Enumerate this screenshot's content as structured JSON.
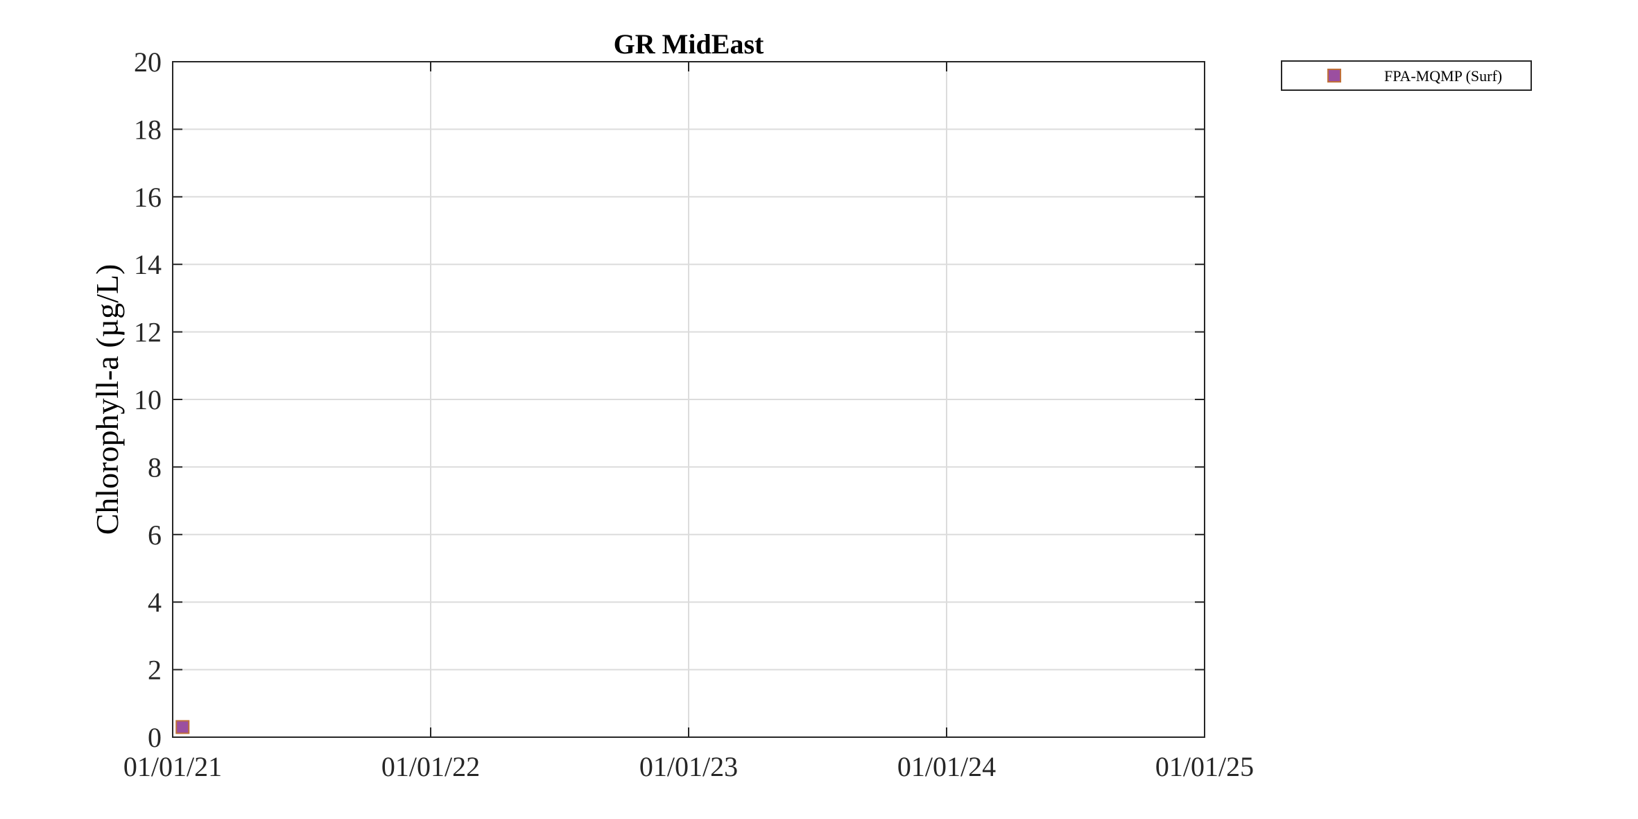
{
  "chart_data": {
    "type": "scatter",
    "title": "GR MidEast",
    "xlabel": "",
    "ylabel": "Chlorophyll-a (µg/L)",
    "xlim": [
      "2021-01-01",
      "2025-01-01"
    ],
    "ylim": [
      0,
      20
    ],
    "x_ticks": [
      "01/01/21",
      "01/01/22",
      "01/01/23",
      "01/01/24",
      "01/01/25"
    ],
    "y_ticks": [
      0,
      2,
      4,
      6,
      8,
      10,
      12,
      14,
      16,
      18,
      20
    ],
    "grid": true,
    "legend_position": "outside top-right",
    "series": [
      {
        "name": "FPA-MQMP (Surf)",
        "marker": "square",
        "color": "#9b4fa0",
        "edge_color": "#c0703a",
        "points": [
          {
            "x": "2021-01-15",
            "y": 0.3
          }
        ]
      }
    ]
  }
}
